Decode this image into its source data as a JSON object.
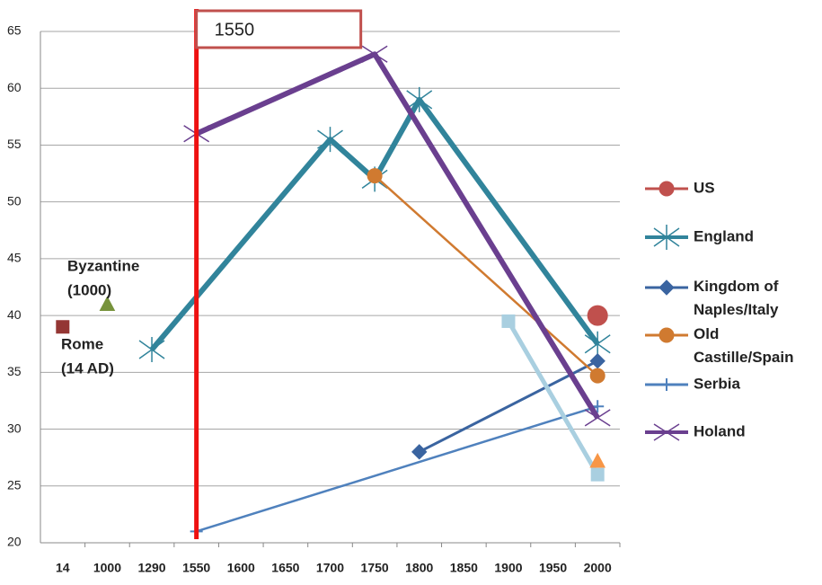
{
  "chart_data": {
    "type": "line",
    "categories": [
      "14",
      "1000",
      "1290",
      "1550",
      "1600",
      "1650",
      "1700",
      "1750",
      "1800",
      "1850",
      "1900",
      "1950",
      "2000"
    ],
    "ylim": [
      20,
      65
    ],
    "yticks": [
      20,
      25,
      30,
      35,
      40,
      45,
      50,
      55,
      60,
      65
    ],
    "grid": true,
    "series": [
      {
        "name": "US",
        "color": "#c0504d",
        "marker": "circle",
        "line_width": 3,
        "x": [
          "2000"
        ],
        "values": [
          40
        ]
      },
      {
        "name": "England",
        "color": "#31849b",
        "marker": "asterisk",
        "line_width": 6,
        "x": [
          "1290",
          "1700",
          "1750",
          "1800",
          "2000"
        ],
        "values": [
          37,
          55.5,
          52,
          59,
          37.5
        ]
      },
      {
        "name": "Kingdom of Naples/Italy",
        "color": "#3a64a0",
        "marker": "diamond",
        "line_width": 3,
        "x": [
          "1800",
          "2000"
        ],
        "values": [
          28,
          36
        ]
      },
      {
        "name": "Old Castille/Spain",
        "color": "#d07a30",
        "marker": "circle",
        "line_width": 2.5,
        "x": [
          "1750",
          "2000"
        ],
        "values": [
          52.3,
          34.7
        ]
      },
      {
        "name": "Serbia",
        "color": "#4f81bd",
        "marker": "plus",
        "line_width": 2.5,
        "x": [
          "1550",
          "2000"
        ],
        "values": [
          21,
          32
        ]
      },
      {
        "name": "Holand",
        "color": "#6a3f8f",
        "marker": "cross",
        "line_width": 6,
        "x": [
          "1550",
          "1750",
          "2000"
        ],
        "values": [
          56,
          63,
          31
        ]
      },
      {
        "color": "#943634",
        "marker": "square",
        "line_width": 0,
        "x": [
          "14"
        ],
        "values": [
          39
        ]
      },
      {
        "color": "#77933c",
        "marker": "triangle",
        "line_width": 0,
        "x": [
          "1000"
        ],
        "values": [
          41
        ]
      },
      {
        "color": "#a9cfe0",
        "marker": "square",
        "line_width": 5,
        "x": [
          "1900",
          "2000"
        ],
        "values": [
          39.5,
          26
        ]
      },
      {
        "color": "#f79646",
        "marker": "triangle",
        "line_width": 0,
        "x": [
          "2000"
        ],
        "values": [
          27.2
        ]
      }
    ],
    "highlight": {
      "x": "1550",
      "label": "1550",
      "color": "#ee1111"
    },
    "annotations": [
      [
        "Byzantine",
        "(1000)"
      ],
      [
        "Rome",
        "(14 AD)"
      ]
    ]
  }
}
